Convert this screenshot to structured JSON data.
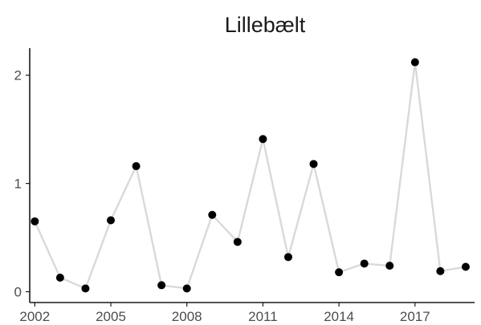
{
  "chart_data": {
    "type": "line",
    "title": "Lillebælt",
    "xlabel": "",
    "ylabel": "",
    "x": [
      2002,
      2003,
      2004,
      2005,
      2006,
      2007,
      2008,
      2009,
      2010,
      2011,
      2012,
      2013,
      2014,
      2015,
      2016,
      2017,
      2018,
      2019
    ],
    "series": [
      {
        "values": [
          0.65,
          0.13,
          0.03,
          0.66,
          1.16,
          0.06,
          0.03,
          0.71,
          0.46,
          1.41,
          0.32,
          1.18,
          0.18,
          0.26,
          0.24,
          2.12,
          0.19,
          0.23
        ]
      }
    ],
    "xticks": [
      "2002",
      "2005",
      "2008",
      "2011",
      "2014",
      "2017"
    ],
    "yticks": [
      "0",
      "1",
      "2"
    ],
    "xlim": [
      2001.8,
      2019.35
    ],
    "ylim": [
      -0.1,
      2.25
    ],
    "grid": false,
    "legend": "none",
    "colors": {
      "line": "#d9d9d9",
      "point": "#000000",
      "axis": "#1a1a1a",
      "text": "#4d4d4d"
    }
  }
}
